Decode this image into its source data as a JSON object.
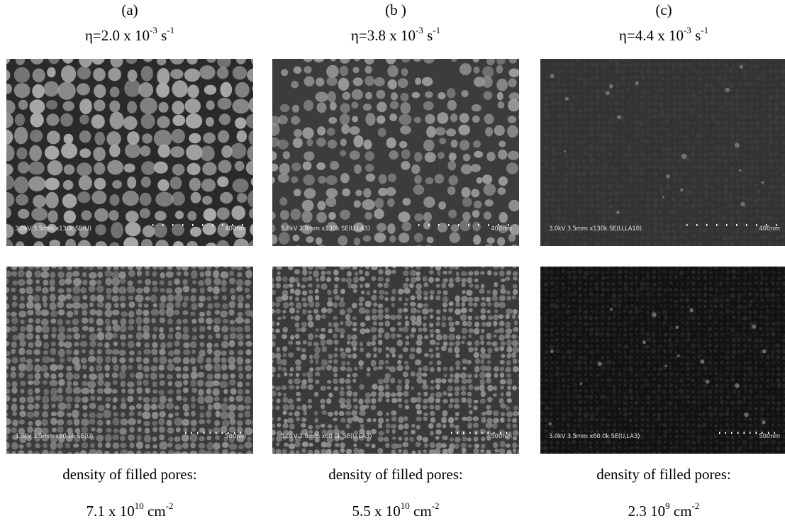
{
  "panels": [
    {
      "letter": "(a)",
      "eta": {
        "prefix": "η=2.0 x 10",
        "exp": "-3",
        "unit": " s",
        "unit_exp": "-1"
      },
      "top_image": {
        "meta": "3.0kV 3.5mm x130k SE(U)",
        "scale": "400nm"
      },
      "bottom_image": {
        "meta": "3.0kV 3.5mm x60.0k SE(U)",
        "scale": "500nm"
      },
      "density_label": "density of filled pores:",
      "density": {
        "base": "7.1 x 10",
        "exp": "10",
        "unit": " cm",
        "unit_exp": "-2"
      },
      "texture": {
        "top_bg": "#2a2a2a",
        "top_grain": "#a9a9a9",
        "bot_bg": "#3b3b3b",
        "bot_grain": "#8e8e8e"
      }
    },
    {
      "letter": "(b )",
      "eta": {
        "prefix": "η=3.8 x 10",
        "exp": "-3",
        "unit": " s",
        "unit_exp": "-1"
      },
      "top_image": {
        "meta": "5.0kV 2.8mm x130k SE(U,LA3)",
        "scale": "400nm"
      },
      "bottom_image": {
        "meta": "5.0kV 2.8mm x60.0k SE(U,LA3)",
        "scale": "500nm"
      },
      "density_label": "density of filled pores:",
      "density": {
        "base": "5.5 x 10",
        "exp": "10",
        "unit": " cm",
        "unit_exp": "-2"
      },
      "texture": {
        "top_bg": "#3c3c3c",
        "top_grain": "#9a9a9a",
        "bot_bg": "#3a3a3a",
        "bot_grain": "#939393"
      }
    },
    {
      "letter": "(c)",
      "eta": {
        "prefix": "η=4.4 x 10",
        "exp": "-3",
        "unit": " s",
        "unit_exp": "-1"
      },
      "top_image": {
        "meta": "3.0kV 3.5mm x130k SE(U,LA10)",
        "scale": "400nm"
      },
      "bottom_image": {
        "meta": "3.0kV 3.5mm x60.0k SE(U,LA3)",
        "scale": "500nm"
      },
      "density_label": "density of filled pores:",
      "density": {
        "base": "2.3 10",
        "exp": "9",
        "unit": " cm",
        "unit_exp": "-2"
      },
      "texture": {
        "top_bg": "#333333",
        "top_grain": "#444444",
        "bot_bg": "#121212",
        "bot_grain": "#3a3a3a"
      }
    }
  ]
}
